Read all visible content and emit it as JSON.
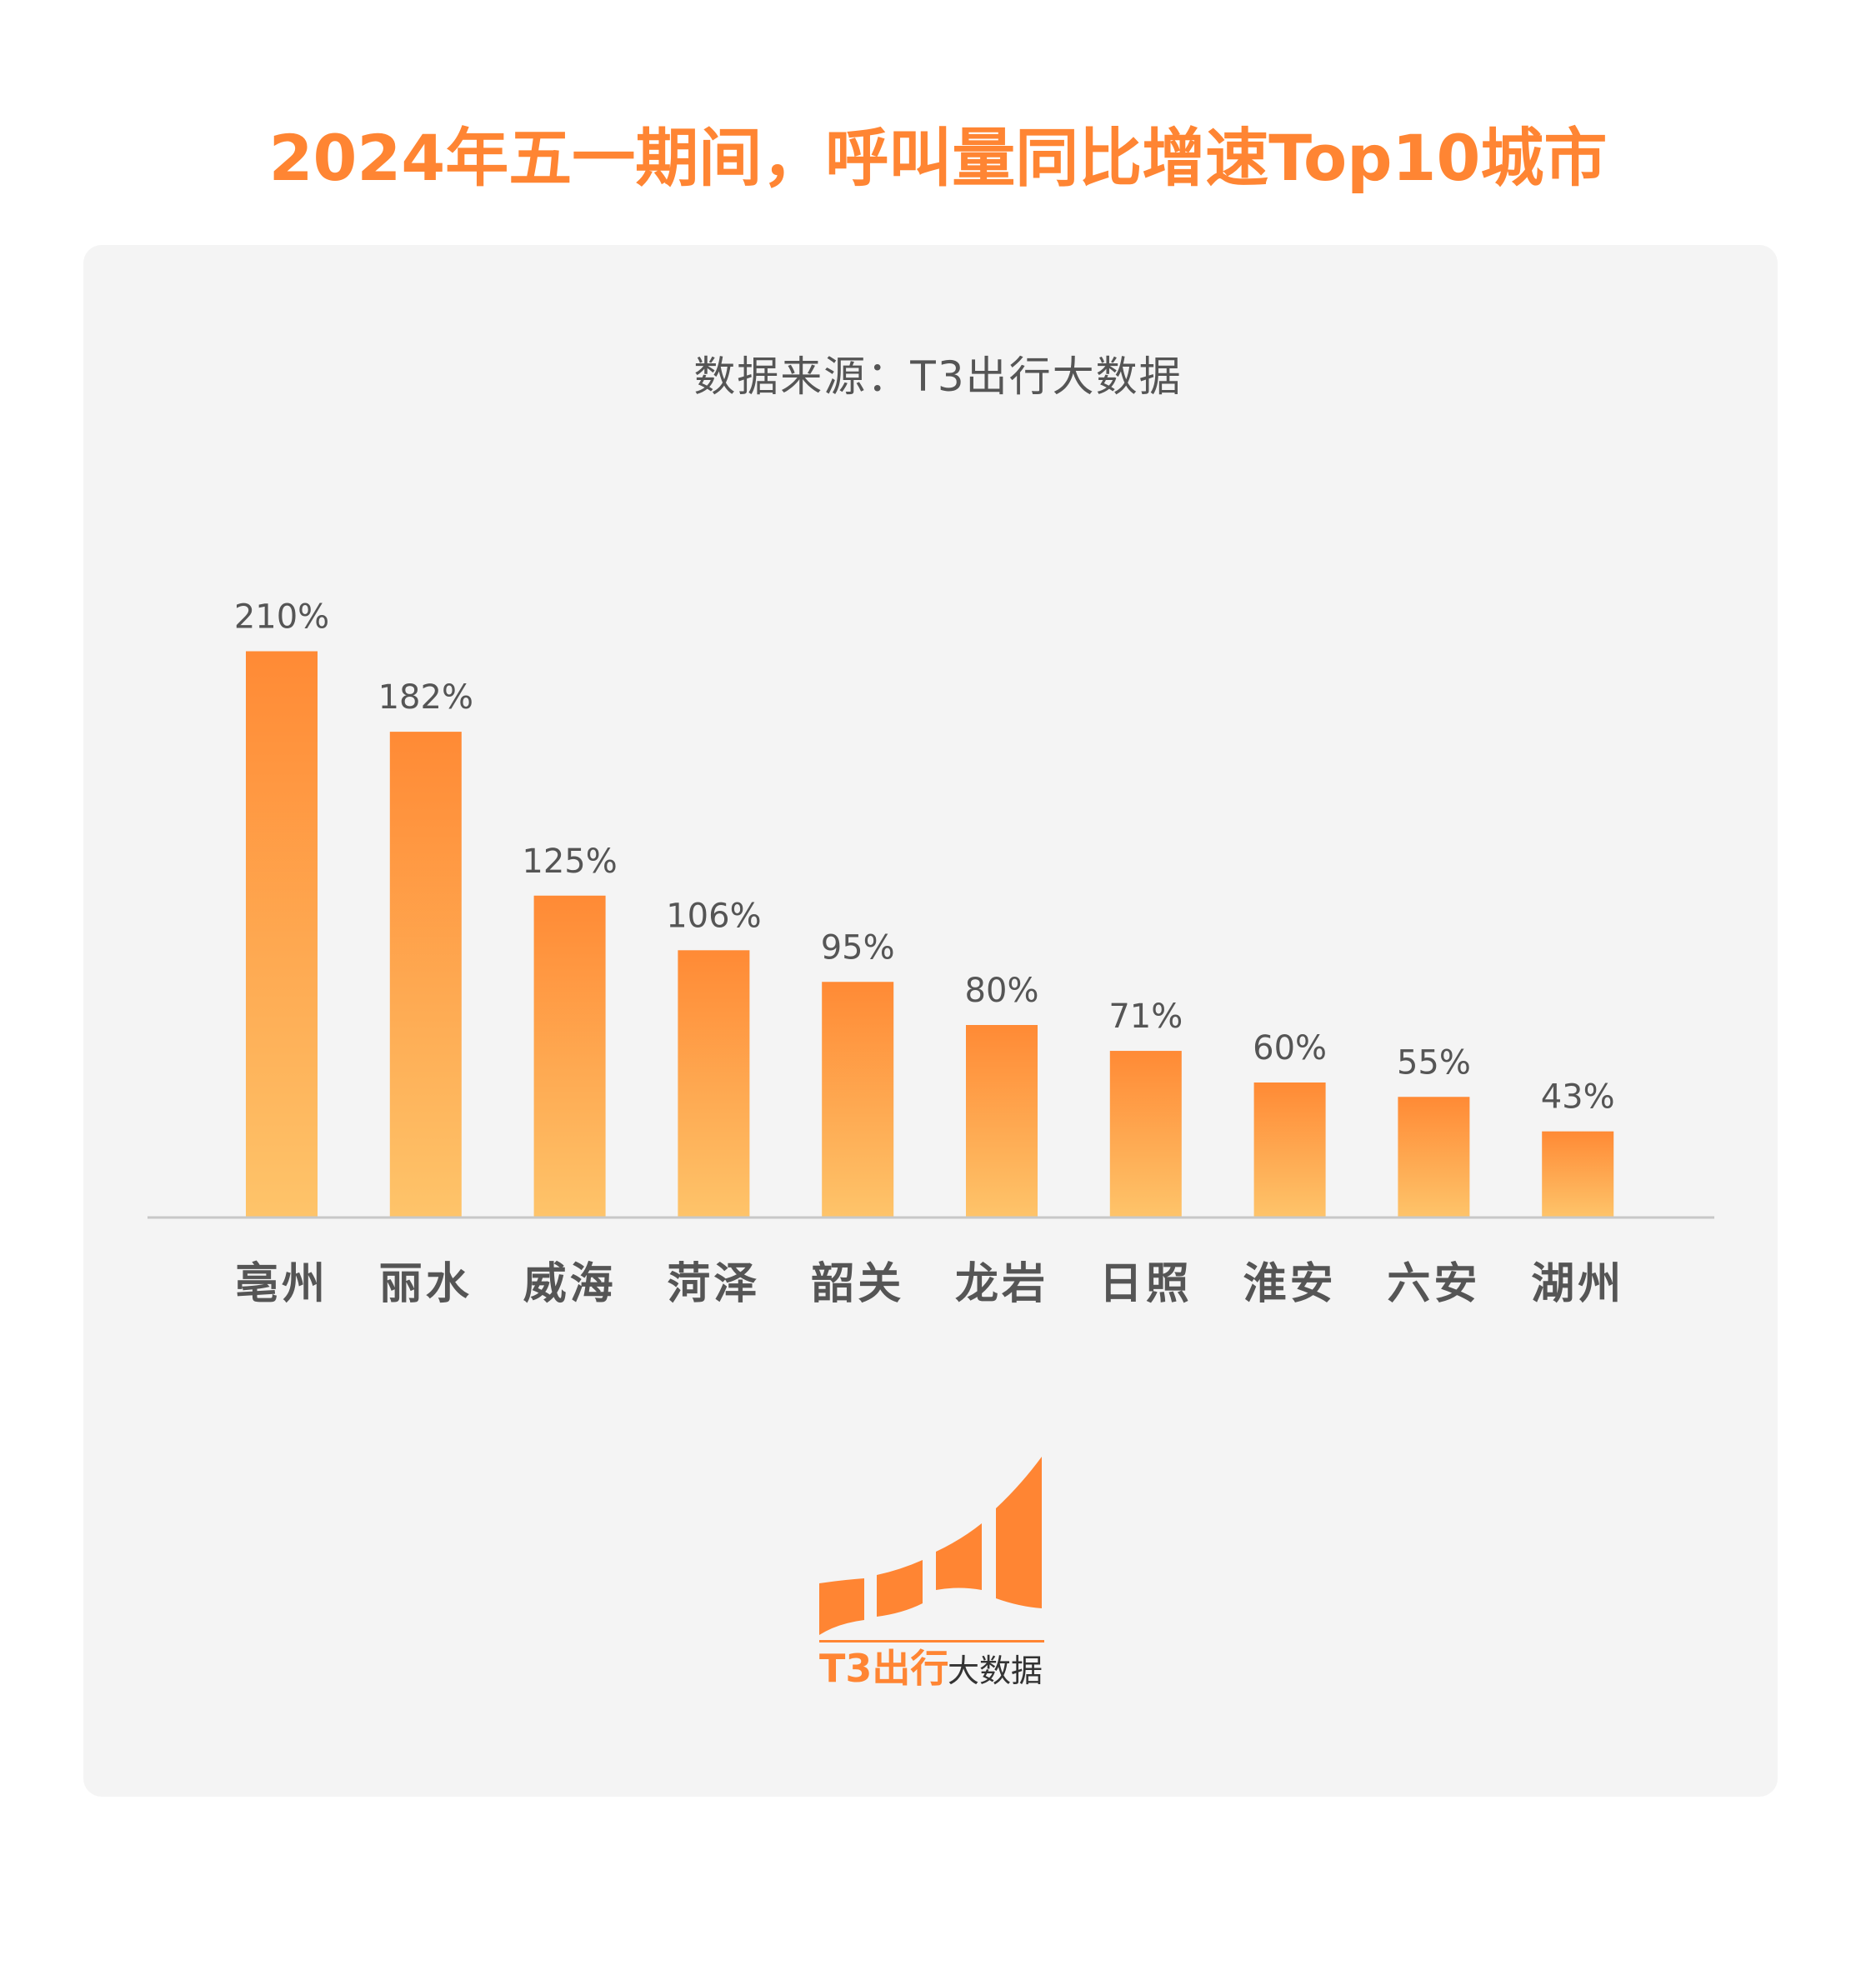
{
  "title": "2024年五一期间，呼叫量同比增速Top10城市",
  "subtitle": "数据来源：T3出行大数据",
  "colors": {
    "accent": "#ff8533",
    "bar_top": "#ff8a35",
    "bar_bottom": "#fec46a",
    "axis": "#c8c8c8",
    "label": "#555555"
  },
  "chart_data": {
    "type": "bar",
    "title": "2024年五一期间，呼叫量同比增速Top10城市",
    "categories": [
      "亳州",
      "丽水",
      "威海",
      "菏泽",
      "韶关",
      "龙岩",
      "日照",
      "淮安",
      "六安",
      "湖州"
    ],
    "values": [
      210,
      182,
      125,
      106,
      95,
      80,
      71,
      60,
      55,
      43
    ],
    "value_labels": [
      "210%",
      "182%",
      "125%",
      "106%",
      "95%",
      "80%",
      "71%",
      "60%",
      "55%",
      "43%"
    ],
    "unit": "%",
    "grid": false,
    "xlabel": "",
    "ylabel": ""
  },
  "logo": {
    "text_brand": "T3出行",
    "text_suffix": "大数据"
  }
}
